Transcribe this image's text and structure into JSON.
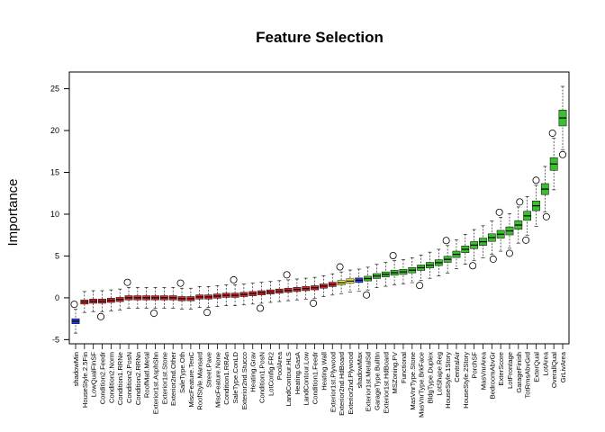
{
  "chart_data": {
    "type": "box",
    "title": "Feature Selection",
    "xlabel": "",
    "ylabel": "Importance",
    "ylim": [
      -5.5,
      27
    ],
    "yticks": [
      -5,
      0,
      5,
      10,
      15,
      20,
      25
    ],
    "grid": false,
    "legend": "none",
    "status_colors": {
      "shadow": "#2b3fe0",
      "rejected": "#e0262c",
      "tentative": "#f1ec3a",
      "confirmed": "#3bbf2e"
    },
    "categories": [
      "shadowMin",
      "HouseStyle.2.5Fin",
      "LowQualFinSF",
      "Condition2.Feedr",
      "Condition2.Norm",
      "Condition1.RRNe",
      "Condition2.PosN",
      "Condition2.RRNn",
      "RoofMatl.Metal",
      "Exterior1st.AsphShn",
      "Exterior1st.Stone",
      "Exterior2nd.Other",
      "SaleType.Oth",
      "MiscFeature.TenC",
      "RoofStyle.Mansard",
      "Street.Pave",
      "MiscFeature.None",
      "Condition1.RRAn",
      "SaleType.ConLD",
      "Exterior2nd.Stucco",
      "Heating.Grav",
      "Condition1.PosN",
      "LotConfig.FR2",
      "PoolArea",
      "LandContour.HLS",
      "Heating.GasA",
      "LandContour.Low",
      "Condition1.Feedr",
      "Heating.Wall",
      "Exterior1st.Plywood",
      "Exterior2nd.HdBoard",
      "Exterior2nd.Plywood",
      "shadowMax",
      "Exterior1st.MetalSd",
      "GarageType.BuiltIn",
      "Exterior1st.HdBoard",
      "MSZoning.FV",
      "Functional",
      "MasVnrType.Stone",
      "MasVnrType.BrkFace",
      "BldgType.Duplex",
      "LotShape.Reg",
      "HouseStyle.1Story",
      "CentralAir",
      "HouseStyle.2Story",
      "PorchSF",
      "MasVnrArea",
      "BedroomAbvGr",
      "ExterScore",
      "LotFrontage",
      "GarageFinish",
      "TotRmsAbvGrd",
      "ExterQual",
      "LotArea",
      "OverallQual",
      "GrLivArea"
    ],
    "median_importance": [
      -2.8,
      -0.5,
      -0.4,
      -0.4,
      -0.3,
      -0.2,
      0.0,
      0.0,
      0.0,
      0.0,
      0.0,
      0.0,
      -0.1,
      -0.1,
      0.1,
      0.1,
      0.2,
      0.3,
      0.3,
      0.4,
      0.5,
      0.6,
      0.7,
      0.8,
      0.9,
      1.0,
      1.1,
      1.2,
      1.4,
      1.6,
      1.8,
      2.0,
      2.1,
      2.3,
      2.6,
      2.8,
      3.0,
      3.1,
      3.3,
      3.6,
      3.9,
      4.2,
      4.6,
      5.2,
      5.8,
      6.3,
      6.7,
      7.2,
      7.6,
      8.0,
      8.7,
      9.8,
      11.0,
      13.0,
      16.0,
      21.5
    ],
    "status": [
      "shadow",
      "rejected",
      "rejected",
      "rejected",
      "rejected",
      "rejected",
      "rejected",
      "rejected",
      "rejected",
      "rejected",
      "rejected",
      "rejected",
      "rejected",
      "rejected",
      "rejected",
      "rejected",
      "rejected",
      "rejected",
      "rejected",
      "rejected",
      "rejected",
      "rejected",
      "rejected",
      "rejected",
      "rejected",
      "rejected",
      "rejected",
      "rejected",
      "rejected",
      "rejected",
      "tentative",
      "tentative",
      "shadow",
      "confirmed",
      "confirmed",
      "confirmed",
      "confirmed",
      "confirmed",
      "confirmed",
      "confirmed",
      "confirmed",
      "confirmed",
      "confirmed",
      "confirmed",
      "confirmed",
      "confirmed",
      "confirmed",
      "confirmed",
      "confirmed",
      "confirmed",
      "confirmed",
      "confirmed",
      "confirmed",
      "confirmed",
      "confirmed",
      "confirmed"
    ]
  }
}
